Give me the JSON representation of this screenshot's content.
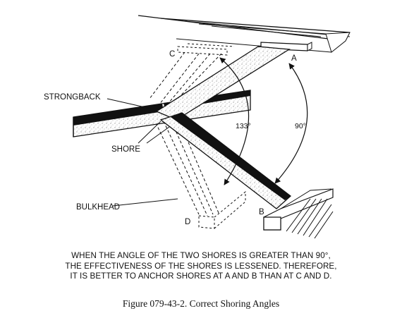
{
  "labels": {
    "strongback": "STRONGBACK",
    "shore": "SHORE",
    "bulkhead": "BULKHEAD",
    "a": "A",
    "b": "B",
    "c": "C",
    "d": "D",
    "angle_obtuse": "133°",
    "angle_right": "90°"
  },
  "note_lines": [
    "WHEN THE ANGLE OF THE TWO SHORES IS GREATER THAN 90°,",
    "THE EFFECTIVENESS OF THE SHORES IS LESSENED.  THEREFORE,",
    "IT IS BETTER TO ANCHOR SHORES AT A AND B THAN AT C AND D."
  ],
  "caption": "Figure 079-43-2.  Correct Shoring Angles"
}
